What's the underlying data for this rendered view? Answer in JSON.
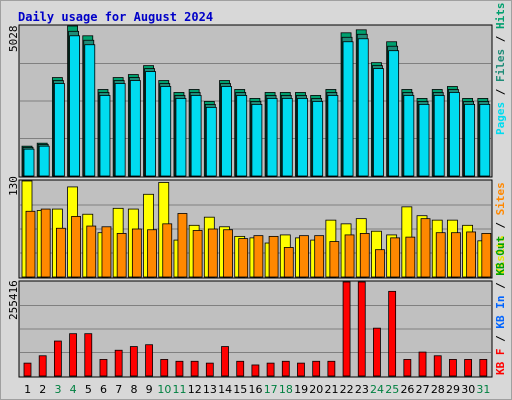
{
  "title": "Daily usage for August 2024",
  "colors": {
    "pages": "#00dcf0",
    "files": "#1e8c78",
    "hits": "#00a06e",
    "visits": "#ffff00",
    "sites": "#ff8800",
    "kb": "#ff0000",
    "weekend_label": "#008040",
    "weekday_label": "#000000",
    "plot_bg": "#c0c0c0",
    "frame_bg": "#d8d8d8",
    "title": "#0000c8"
  },
  "panels": {
    "top": {
      "max_label": "5028",
      "legend": [
        {
          "text": "Pages",
          "color": "#00dcf0"
        },
        {
          "text": "/",
          "color": "#000000"
        },
        {
          "text": "Files",
          "color": "#1e8c78"
        },
        {
          "text": "/",
          "color": "#000000"
        },
        {
          "text": "Hits",
          "color": "#00a06e"
        }
      ]
    },
    "middle": {
      "max_label": "130",
      "legend": [
        {
          "text": "Visits",
          "color": "#e6e600"
        },
        {
          "text": "/",
          "color": "#000000"
        },
        {
          "text": "Sites",
          "color": "#ff8800"
        }
      ]
    },
    "bottom": {
      "max_label": "255416",
      "legend": [
        {
          "text": "KB F",
          "color": "#ff0000"
        },
        {
          "text": "/",
          "color": "#000000"
        },
        {
          "text": "KB In",
          "color": "#0064ff"
        },
        {
          "text": "/",
          "color": "#000000"
        },
        {
          "text": "KB Out",
          "color": "#00a000"
        }
      ]
    }
  },
  "chart_data": {
    "type": "bar",
    "title": "Daily usage for August 2024",
    "categories": [
      "1",
      "2",
      "3",
      "4",
      "5",
      "6",
      "7",
      "8",
      "9",
      "10",
      "11",
      "12",
      "13",
      "14",
      "15",
      "16",
      "17",
      "18",
      "19",
      "20",
      "21",
      "22",
      "23",
      "24",
      "25",
      "26",
      "27",
      "28",
      "29",
      "30",
      "31"
    ],
    "weekend_days": [
      "3",
      "4",
      "10",
      "11",
      "17",
      "18",
      "24",
      "25",
      "31"
    ],
    "series": [
      {
        "name": "Hits",
        "panel": "top",
        "values": [
          1000,
          1100,
          3300,
          5028,
          4700,
          2900,
          3300,
          3400,
          3700,
          3200,
          2800,
          2900,
          2500,
          3200,
          2900,
          2600,
          2800,
          2800,
          2800,
          2700,
          2900,
          4800,
          4900,
          3800,
          4500,
          2900,
          2600,
          2900,
          3000,
          2600,
          2600
        ]
      },
      {
        "name": "Files",
        "panel": "top",
        "values": [
          960,
          1060,
          3200,
          4850,
          4550,
          2800,
          3200,
          3300,
          3600,
          3100,
          2700,
          2800,
          2400,
          3100,
          2800,
          2500,
          2700,
          2700,
          2700,
          2600,
          2800,
          4650,
          4750,
          3700,
          4350,
          2800,
          2500,
          2800,
          2900,
          2500,
          2500
        ]
      },
      {
        "name": "Pages",
        "panel": "top",
        "values": [
          900,
          1000,
          3100,
          4700,
          4400,
          2700,
          3100,
          3200,
          3500,
          3000,
          2600,
          2700,
          2300,
          3000,
          2700,
          2400,
          2600,
          2600,
          2600,
          2500,
          2700,
          4500,
          4600,
          3600,
          4200,
          2700,
          2400,
          2700,
          2800,
          2400,
          2400
        ]
      },
      {
        "name": "Visits",
        "panel": "middle",
        "values": [
          130,
          90,
          92,
          122,
          85,
          60,
          93,
          92,
          112,
          128,
          50,
          70,
          81,
          68,
          55,
          53,
          46,
          57,
          53,
          50,
          77,
          72,
          79,
          62,
          57,
          95,
          83,
          77,
          77,
          70,
          49
        ]
      },
      {
        "name": "Sites",
        "panel": "middle",
        "values": [
          89,
          92,
          66,
          82,
          69,
          68,
          59,
          65,
          64,
          72,
          86,
          63,
          65,
          64,
          52,
          56,
          55,
          40,
          56,
          56,
          48,
          57,
          59,
          37,
          53,
          54,
          79,
          60,
          60,
          61,
          59
        ]
      },
      {
        "name": "KB F",
        "panel": "bottom",
        "values": [
          35000,
          55000,
          95000,
          115000,
          115000,
          45000,
          70000,
          80000,
          85000,
          45000,
          40000,
          40000,
          35000,
          80000,
          40000,
          30000,
          35000,
          40000,
          35000,
          40000,
          40000,
          255416,
          255416,
          130000,
          230000,
          45000,
          65000,
          55000,
          45000,
          45000,
          45000
        ]
      }
    ],
    "xlabel": "",
    "ylabel": ""
  }
}
